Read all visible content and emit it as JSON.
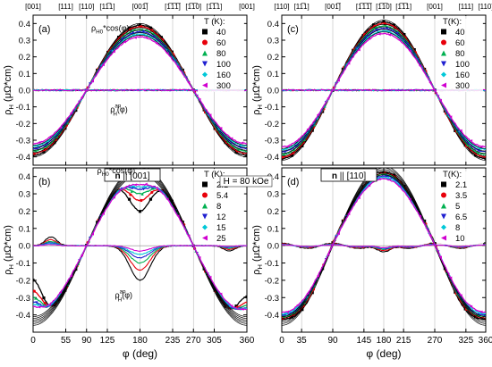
{
  "chart_data": [
    {
      "id": "a",
      "type": "scatter",
      "panel_label": "(a)",
      "top_labels": [
        {
          "text": "[001]",
          "x": 0
        },
        {
          "text": "[111]",
          "x": 55
        },
        {
          "text": "[110]",
          "x": 90
        },
        {
          "text": "[11̅1]",
          "x": 125
        },
        {
          "text": "[001̅]",
          "x": 180
        },
        {
          "text": "[1̅1̅1̅]",
          "x": 235
        },
        {
          "text": "[1̅1̅0]",
          "x": 270
        },
        {
          "text": "[1̅1̅1]",
          "x": 305
        },
        {
          "text": "[001]",
          "x": 360
        }
      ],
      "ylabel": "ρH (μΩ*cm)",
      "xlabel": "",
      "xlim": [
        0,
        360
      ],
      "ylim": [
        -0.45,
        0.45
      ],
      "xticks": [
        0,
        55,
        90,
        125,
        180,
        235,
        270,
        305,
        360
      ],
      "yticks": [
        -0.4,
        -0.3,
        -0.2,
        -0.1,
        0.0,
        0.1,
        0.2,
        0.3,
        0.4
      ],
      "show_x_ticklabels": false,
      "legend_title": "T (K):",
      "series": [
        {
          "name": "40",
          "color": "#000000",
          "marker": "square",
          "amp": 0.4
        },
        {
          "name": "60",
          "color": "#e8000b",
          "marker": "circle",
          "amp": 0.39
        },
        {
          "name": "80",
          "color": "#00b050",
          "marker": "triangle",
          "amp": 0.375
        },
        {
          "name": "100",
          "color": "#1f1fd0",
          "marker": "triangle-down",
          "amp": 0.36
        },
        {
          "name": "160",
          "color": "#00c8d8",
          "marker": "diamond",
          "amp": 0.345
        },
        {
          "name": "300",
          "color": "#d000d0",
          "marker": "triangle-left",
          "amp": 0.33
        }
      ],
      "annotations": [
        {
          "text": "ρH0*cos(φ)",
          "x": 140,
          "y": 0.355
        },
        {
          "text": "ρHan(φ)",
          "x": 172,
          "y": -0.13
        }
      ]
    },
    {
      "id": "c",
      "type": "scatter",
      "panel_label": "(c)",
      "top_labels": [
        {
          "text": "[110]",
          "x": 0
        },
        {
          "text": "[11̅1]",
          "x": 35
        },
        {
          "text": "[001̅]",
          "x": 90
        },
        {
          "text": "[1̅1̅1̅]",
          "x": 145
        },
        {
          "text": "[1̅1̅0]",
          "x": 180
        },
        {
          "text": "[1̅1̅1]",
          "x": 215
        },
        {
          "text": "[001]",
          "x": 270
        },
        {
          "text": "[111]",
          "x": 325
        },
        {
          "text": "[110]",
          "x": 360
        }
      ],
      "ylabel": "ρH (μΩ*cm)",
      "xlabel": "",
      "xlim": [
        0,
        360
      ],
      "ylim": [
        -0.45,
        0.45
      ],
      "xticks": [
        0,
        35,
        90,
        145,
        180,
        215,
        270,
        325,
        360
      ],
      "yticks": [
        -0.4,
        -0.3,
        -0.2,
        -0.1,
        0.0,
        0.1,
        0.2,
        0.3,
        0.4
      ],
      "show_x_ticklabels": false,
      "legend_title": "T(K):",
      "series": [
        {
          "name": "40",
          "color": "#000000",
          "marker": "square",
          "amp": 0.42
        },
        {
          "name": "60",
          "color": "#e8000b",
          "marker": "circle",
          "amp": 0.41
        },
        {
          "name": "80",
          "color": "#00b050",
          "marker": "triangle",
          "amp": 0.395
        },
        {
          "name": "100",
          "color": "#1f1fd0",
          "marker": "triangle-down",
          "amp": 0.38
        },
        {
          "name": "160",
          "color": "#00c8d8",
          "marker": "diamond",
          "amp": 0.365
        },
        {
          "name": "300",
          "color": "#d000d0",
          "marker": "triangle-left",
          "amp": 0.35
        }
      ],
      "annotations": []
    },
    {
      "id": "b",
      "type": "scatter",
      "panel_label": "(b)",
      "top_labels": [],
      "box_label": "n || [001]",
      "ylabel": "ρH (μΩ*cm)",
      "xlabel": "φ (deg)",
      "xlim": [
        0,
        360
      ],
      "ylim": [
        -0.5,
        0.45
      ],
      "xticks": [
        0,
        55,
        90,
        125,
        180,
        235,
        270,
        305,
        360
      ],
      "yticks": [
        -0.4,
        -0.3,
        -0.2,
        -0.1,
        0.0,
        0.1,
        0.2,
        0.3,
        0.4
      ],
      "show_x_ticklabels": true,
      "legend_title": "T (K):",
      "series": [
        {
          "name": "2.1",
          "color": "#000000",
          "marker": "square",
          "amp": 0.46,
          "an": 0.2
        },
        {
          "name": "5.4",
          "color": "#e8000b",
          "marker": "circle",
          "amp": 0.45,
          "an": 0.14
        },
        {
          "name": "8",
          "color": "#00b050",
          "marker": "triangle",
          "amp": 0.44,
          "an": 0.1
        },
        {
          "name": "12",
          "color": "#1f1fd0",
          "marker": "triangle-down",
          "amp": 0.43,
          "an": 0.07
        },
        {
          "name": "15",
          "color": "#00c8d8",
          "marker": "diamond",
          "amp": 0.42,
          "an": 0.05
        },
        {
          "name": "25",
          "color": "#d000d0",
          "marker": "triangle-left",
          "amp": 0.41,
          "an": 0.03
        }
      ],
      "annotations": [
        {
          "text": "ρH0*cos(φ)",
          "x": 150,
          "y": 0.42
        },
        {
          "text": "ρHan(φ)",
          "x": 180,
          "y": -0.3
        }
      ]
    },
    {
      "id": "d",
      "type": "scatter",
      "panel_label": "(d)",
      "top_labels": [],
      "box_label": "n || [110]",
      "ylabel": "ρH (μΩ*cm)",
      "xlabel": "φ (deg)",
      "xlim": [
        0,
        360
      ],
      "ylim": [
        -0.5,
        0.45
      ],
      "xticks": [
        0,
        35,
        90,
        145,
        180,
        215,
        270,
        325,
        360
      ],
      "yticks": [
        -0.4,
        -0.3,
        -0.2,
        -0.1,
        0.0,
        0.1,
        0.2,
        0.3,
        0.4
      ],
      "show_x_ticklabels": true,
      "legend_title": "T(K):",
      "series": [
        {
          "name": "2.1",
          "color": "#000000",
          "marker": "square",
          "amp": 0.46,
          "an": 0.05
        },
        {
          "name": "3.5",
          "color": "#e8000b",
          "marker": "circle",
          "amp": 0.45,
          "an": 0.04
        },
        {
          "name": "5",
          "color": "#00b050",
          "marker": "triangle",
          "amp": 0.44,
          "an": 0.03
        },
        {
          "name": "6.5",
          "color": "#1f1fd0",
          "marker": "triangle-down",
          "amp": 0.43,
          "an": 0.025
        },
        {
          "name": "8",
          "color": "#00c8d8",
          "marker": "diamond",
          "amp": 0.42,
          "an": 0.02
        },
        {
          "name": "10",
          "color": "#d000d0",
          "marker": "triangle-left",
          "amp": 0.41,
          "an": 0.015
        }
      ],
      "annotations": []
    }
  ],
  "field_label": "H = 80 kOe"
}
